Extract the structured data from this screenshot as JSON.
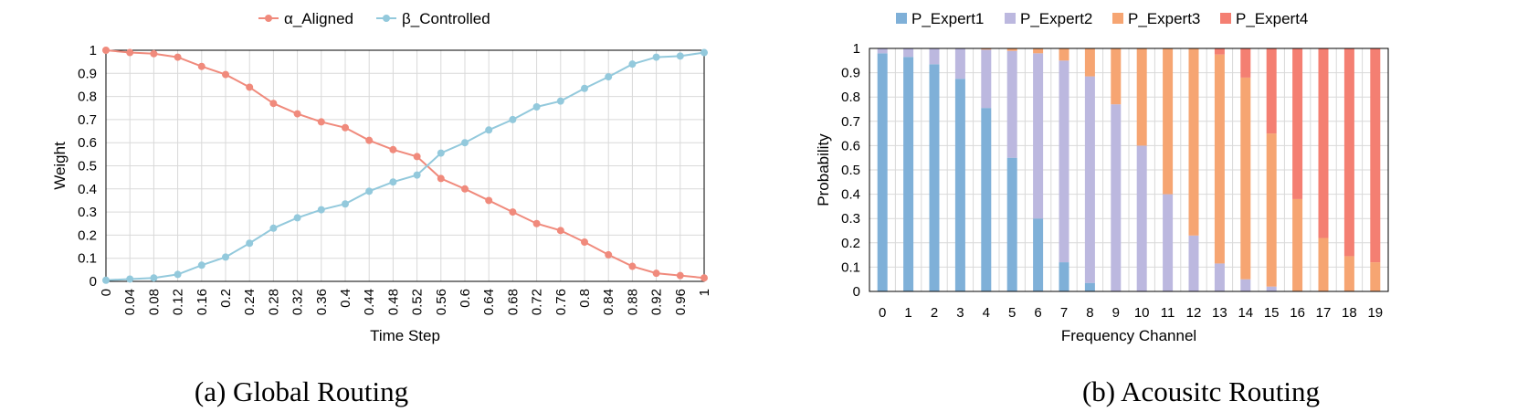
{
  "chart_data": [
    {
      "type": "line",
      "caption": "(a) Global Routing",
      "xlabel": "Time Step",
      "ylabel": "Weight",
      "ylim": [
        0,
        1
      ],
      "yticks": [
        "0",
        "0.1",
        "0.2",
        "0.3",
        "0.4",
        "0.5",
        "0.6",
        "0.7",
        "0.8",
        "0.9",
        "1"
      ],
      "categories": [
        "0",
        "0.04",
        "0.08",
        "0.12",
        "0.16",
        "0.2",
        "0.24",
        "0.28",
        "0.32",
        "0.36",
        "0.4",
        "0.44",
        "0.48",
        "0.52",
        "0.56",
        "0.6",
        "0.64",
        "0.68",
        "0.72",
        "0.76",
        "0.8",
        "0.84",
        "0.88",
        "0.92",
        "0.96",
        "1"
      ],
      "grid": true,
      "legend_position": "top",
      "series": [
        {
          "name": "α_Aligned",
          "color": "#f08a7c",
          "values": [
            1.0,
            0.99,
            0.985,
            0.97,
            0.93,
            0.895,
            0.84,
            0.77,
            0.725,
            0.69,
            0.665,
            0.61,
            0.57,
            0.54,
            0.445,
            0.4,
            0.35,
            0.3,
            0.25,
            0.22,
            0.17,
            0.115,
            0.065,
            0.035,
            0.025,
            0.015
          ]
        },
        {
          "name": "β_Controlled",
          "color": "#93c9dc",
          "values": [
            0.005,
            0.01,
            0.015,
            0.03,
            0.07,
            0.105,
            0.165,
            0.23,
            0.275,
            0.31,
            0.335,
            0.39,
            0.43,
            0.46,
            0.555,
            0.6,
            0.655,
            0.7,
            0.755,
            0.78,
            0.835,
            0.885,
            0.94,
            0.97,
            0.975,
            0.99
          ]
        }
      ]
    },
    {
      "type": "bar",
      "stacked": true,
      "caption": "(b) Acousitc Routing",
      "xlabel": "Frequency Channel",
      "ylabel": "Probability",
      "ylim": [
        0,
        1
      ],
      "yticks": [
        "0",
        "0.1",
        "0.2",
        "0.3",
        "0.4",
        "0.5",
        "0.6",
        "0.7",
        "0.8",
        "0.9",
        "1"
      ],
      "categories": [
        "0",
        "1",
        "2",
        "3",
        "4",
        "5",
        "6",
        "7",
        "8",
        "9",
        "10",
        "11",
        "12",
        "13",
        "14",
        "15",
        "16",
        "17",
        "18",
        "19"
      ],
      "grid": true,
      "legend_position": "top",
      "series": [
        {
          "name": "P_Expert1",
          "color": "#7fb0d8",
          "values": [
            0.98,
            0.965,
            0.935,
            0.875,
            0.755,
            0.55,
            0.3,
            0.12,
            0.035,
            0,
            0,
            0,
            0,
            0,
            0,
            0,
            0,
            0,
            0,
            0
          ]
        },
        {
          "name": "P_Expert2",
          "color": "#bcb8df",
          "values": [
            0.02,
            0.035,
            0.065,
            0.125,
            0.24,
            0.44,
            0.68,
            0.83,
            0.85,
            0.77,
            0.6,
            0.4,
            0.23,
            0.115,
            0.05,
            0.02,
            0,
            0,
            0,
            0
          ]
        },
        {
          "name": "P_Expert3",
          "color": "#f6a572",
          "values": [
            0,
            0,
            0,
            0,
            0.005,
            0.01,
            0.02,
            0.05,
            0.115,
            0.23,
            0.4,
            0.6,
            0.77,
            0.86,
            0.83,
            0.63,
            0.38,
            0.22,
            0.145,
            0.12
          ]
        },
        {
          "name": "P_Expert4",
          "color": "#f47f72",
          "values": [
            0,
            0,
            0,
            0,
            0,
            0,
            0,
            0,
            0,
            0,
            0,
            0,
            0,
            0.025,
            0.12,
            0.35,
            0.62,
            0.78,
            0.855,
            0.88
          ]
        }
      ]
    }
  ]
}
